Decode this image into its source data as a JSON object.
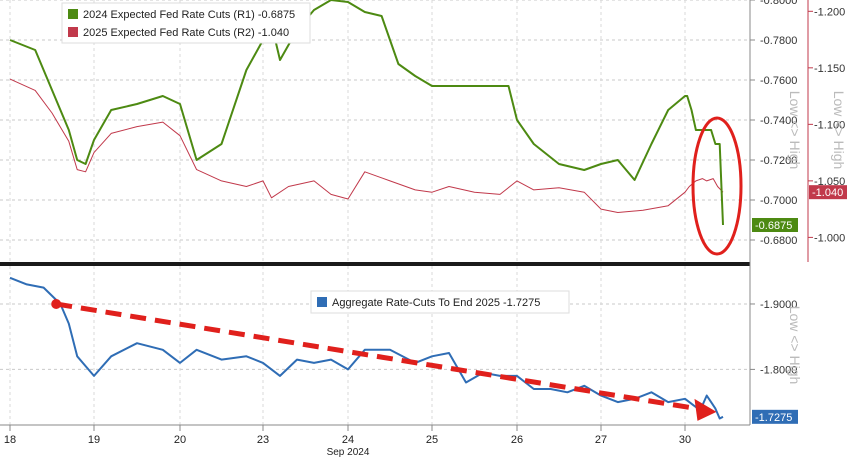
{
  "chart_data": [
    {
      "type": "line",
      "panel": "top",
      "legend_placement": "top-left",
      "grid": true,
      "series": [
        {
          "name": "2024 Expected Fed Rate Cuts (R1)",
          "legend_label": "2024 Expected Fed Rate Cuts (R1) -0.6875",
          "axis": "R1",
          "color": "#4d8a12",
          "last_value": -0.6875,
          "last_label": "-0.6875",
          "x": [
            0,
            0.3,
            0.5,
            0.7,
            0.8,
            0.9,
            1.0,
            1.2,
            1.5,
            1.8,
            2.0,
            2.2,
            2.5,
            2.8,
            3.0,
            3.1,
            3.2,
            3.4,
            3.6,
            3.8,
            4.0,
            4.2,
            4.4,
            4.6,
            4.8,
            5.0,
            5.1,
            5.3,
            5.6,
            5.9,
            6.0,
            6.2,
            6.5,
            6.8,
            7.0,
            7.2,
            7.4,
            7.6,
            7.8,
            8.0,
            8.1,
            8.3,
            8.5,
            8.8,
            9.0,
            9.2,
            9.4,
            9.6,
            9.75
          ],
          "values": [
            -0.78,
            -0.775,
            -0.755,
            -0.735,
            -0.72,
            -0.718,
            -0.73,
            -0.745,
            -0.748,
            -0.752,
            -0.748,
            -0.72,
            -0.728,
            -0.765,
            -0.78,
            -0.788,
            -0.77,
            -0.785,
            -0.795,
            -0.8,
            -0.799,
            -0.794,
            -0.792,
            -0.768,
            -0.762,
            -0.757,
            -0.757,
            -0.757,
            -0.757,
            -0.757,
            -0.74,
            -0.728,
            -0.718,
            -0.715,
            -0.718,
            -0.72,
            -0.71,
            -0.728,
            -0.745,
            -0.752,
            -0.752,
            -0.745,
            -0.735,
            -0.735,
            -0.735,
            -0.735,
            -0.728,
            -0.728,
            -0.6875
          ]
        },
        {
          "name": "2025 Expected Fed Rate Cuts (R2)",
          "legend_label": "2025 Expected Fed Rate Cuts (R2) -1.040",
          "axis": "R2",
          "color": "#c1394b",
          "last_value": -1.04,
          "last_label": "-1.040",
          "x": [
            0,
            0.3,
            0.5,
            0.7,
            0.8,
            0.9,
            1.0,
            1.2,
            1.5,
            1.8,
            2.0,
            2.2,
            2.5,
            2.8,
            3.0,
            3.1,
            3.3,
            3.6,
            3.8,
            4.0,
            4.2,
            4.5,
            4.8,
            5.0,
            5.2,
            5.5,
            5.8,
            6.0,
            6.2,
            6.5,
            6.8,
            7.0,
            7.2,
            7.5,
            7.8,
            8.0,
            8.2,
            8.5,
            8.8,
            9.0,
            9.3,
            9.5,
            9.75
          ],
          "values": [
            -1.14,
            -1.13,
            -1.11,
            -1.085,
            -1.06,
            -1.058,
            -1.075,
            -1.092,
            -1.098,
            -1.102,
            -1.09,
            -1.06,
            -1.05,
            -1.045,
            -1.05,
            -1.035,
            -1.045,
            -1.05,
            -1.038,
            -1.034,
            -1.058,
            -1.05,
            -1.042,
            -1.04,
            -1.045,
            -1.04,
            -1.038,
            -1.05,
            -1.042,
            -1.044,
            -1.04,
            -1.025,
            -1.022,
            -1.024,
            -1.028,
            -1.04,
            -1.045,
            -1.05,
            -1.052,
            -1.05,
            -1.052,
            -1.045,
            -1.04
          ]
        }
      ],
      "axes": {
        "R1": {
          "ylim": [
            -0.8,
            -0.67
          ],
          "ticks": [
            "-0.8000",
            "-0.7800",
            "-0.7600",
            "-0.7400",
            "-0.7200",
            "-0.7000",
            "-0.6800"
          ],
          "tick_values": [
            -0.8,
            -0.78,
            -0.76,
            -0.74,
            -0.72,
            -0.7,
            -0.68
          ],
          "side_label": "Low <> High"
        },
        "R2": {
          "ylim": [
            -1.21,
            -0.98
          ],
          "ticks": [
            "-1.200",
            "-1.150",
            "-1.100",
            "-1.050",
            "-1.000"
          ],
          "tick_values": [
            -1.2,
            -1.15,
            -1.1,
            -1.05,
            -1.0
          ],
          "side_label": "Low <> High"
        }
      },
      "annotations": [
        {
          "kind": "ellipse",
          "label": ""
        }
      ]
    },
    {
      "type": "line",
      "panel": "bottom",
      "legend_placement": "top-center",
      "grid": true,
      "series": [
        {
          "name": "Aggregate Rate-Cuts To End 2025",
          "legend_label": "Aggregate Rate-Cuts To End 2025  -1.7275",
          "color": "#2f6db5",
          "last_value": -1.7275,
          "last_label": "-1.7275",
          "x": [
            0,
            0.2,
            0.4,
            0.6,
            0.7,
            0.8,
            0.9,
            1.0,
            1.2,
            1.5,
            1.8,
            2.0,
            2.2,
            2.5,
            2.8,
            3.0,
            3.2,
            3.4,
            3.6,
            3.8,
            4.0,
            4.2,
            4.5,
            4.8,
            5.0,
            5.2,
            5.4,
            5.6,
            5.8,
            6.0,
            6.2,
            6.4,
            6.6,
            6.8,
            7.0,
            7.2,
            7.4,
            7.6,
            7.8,
            8.0,
            8.2,
            8.4,
            8.6,
            8.8,
            9.0,
            9.2,
            9.4,
            9.6,
            9.75
          ],
          "values": [
            -1.94,
            -1.93,
            -1.925,
            -1.9,
            -1.87,
            -1.82,
            -1.805,
            -1.79,
            -1.82,
            -1.84,
            -1.83,
            -1.81,
            -1.83,
            -1.815,
            -1.82,
            -1.81,
            -1.79,
            -1.815,
            -1.81,
            -1.815,
            -1.8,
            -1.83,
            -1.83,
            -1.81,
            -1.82,
            -1.825,
            -1.78,
            -1.795,
            -1.79,
            -1.79,
            -1.77,
            -1.77,
            -1.765,
            -1.775,
            -1.76,
            -1.75,
            -1.755,
            -1.765,
            -1.75,
            -1.755,
            -1.75,
            -1.745,
            -1.74,
            -1.745,
            -1.76,
            -1.75,
            -1.74,
            -1.725,
            -1.7275
          ]
        }
      ],
      "axes": {
        "R": {
          "ylim": [
            -1.955,
            -1.715
          ],
          "ticks": [
            "-1.9000",
            "-1.8000"
          ],
          "tick_values": [
            -1.9,
            -1.8
          ],
          "side_label": "Low <> High"
        }
      },
      "annotations": [
        {
          "kind": "dashed-arrow",
          "label": ""
        }
      ]
    }
  ],
  "x_axis": {
    "ticks": [
      "18",
      "19",
      "20",
      "23",
      "24",
      "25",
      "26",
      "27",
      "30"
    ],
    "sublabel": "Sep 2024"
  }
}
